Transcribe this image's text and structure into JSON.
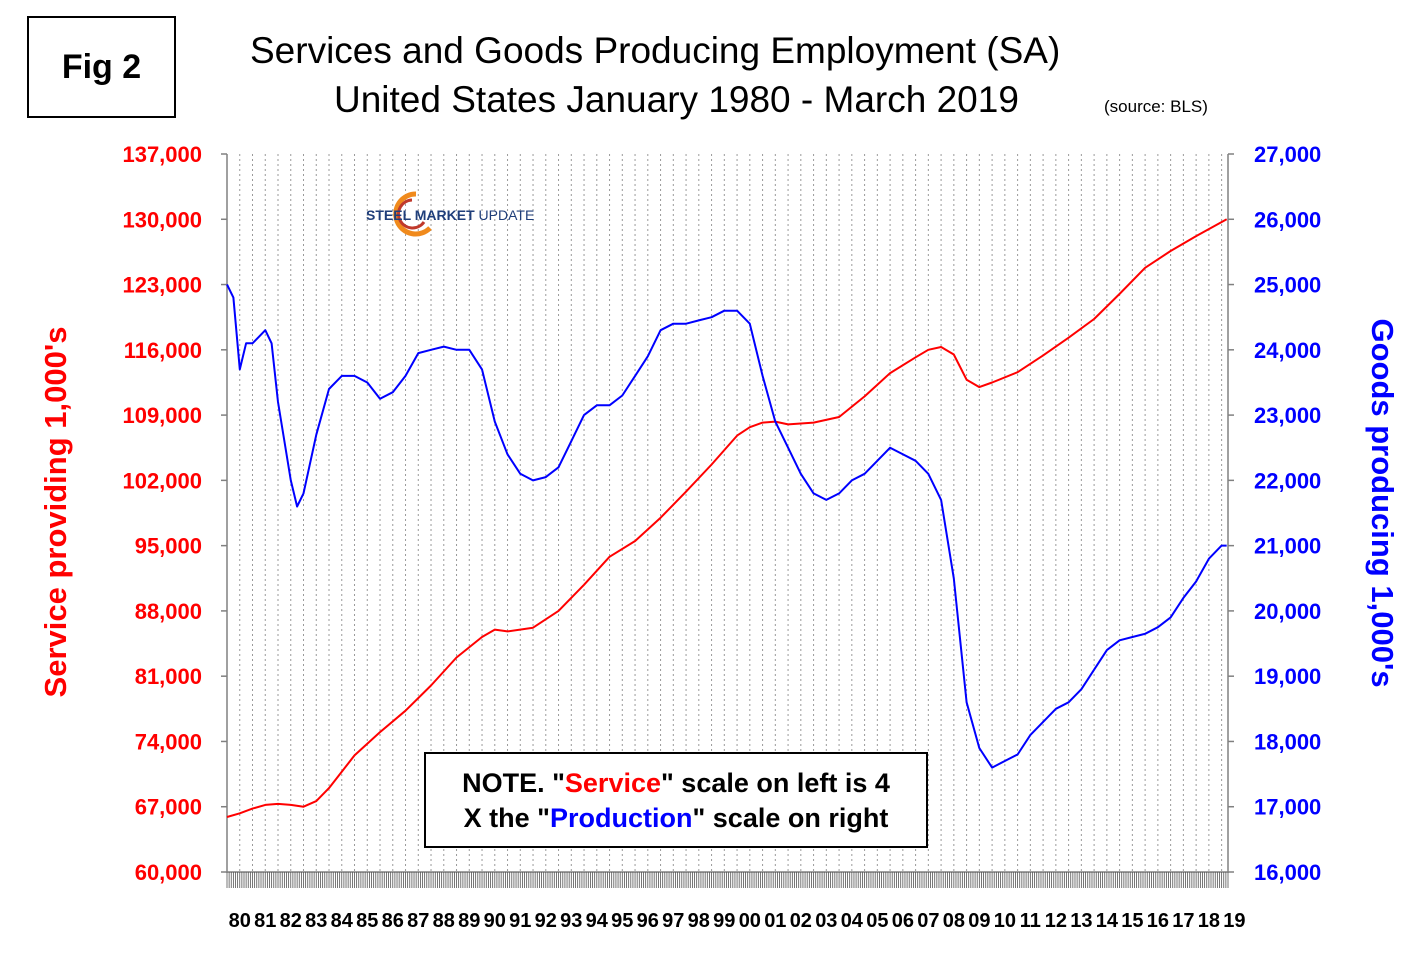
{
  "fig_label": "Fig 2",
  "title_line1": "Services and Goods Producing Employment (SA)",
  "title_line2": "United States January 1980 - March 2019",
  "source": "(source: BLS)",
  "logo": {
    "bold": "STEEL MARKET",
    "light": " UPDATE"
  },
  "note": {
    "p1": "NOTE. \"",
    "service": "Service",
    "p2": "\" scale on left  is 4",
    "p3": "X the \"",
    "production": "Production",
    "p4": "\" scale on right"
  },
  "colors": {
    "service": "#ff0000",
    "goods": "#0000ff"
  },
  "chart_data": {
    "type": "line",
    "title": "Services and Goods Producing Employment (SA) United States January 1980 - March 2019",
    "ylabel_left": "Service providing 1,000's",
    "ylabel_right": "Goods producing 1,000's",
    "ylim_left": [
      60000,
      137000
    ],
    "ylim_right": [
      16000,
      27000
    ],
    "yticks_left": [
      "60,000",
      "67,000",
      "74,000",
      "81,000",
      "88,000",
      "95,000",
      "102,000",
      "109,000",
      "116,000",
      "123,000",
      "130,000",
      "137,000"
    ],
    "yticks_right": [
      "16,000",
      "17,000",
      "18,000",
      "19,000",
      "20,000",
      "21,000",
      "22,000",
      "23,000",
      "24,000",
      "25,000",
      "26,000",
      "27,000"
    ],
    "x_labels": [
      "80",
      "81",
      "82",
      "83",
      "84",
      "85",
      "86",
      "87",
      "88",
      "89",
      "90",
      "91",
      "92",
      "93",
      "94",
      "95",
      "96",
      "97",
      "98",
      "99",
      "00",
      "01",
      "02",
      "03",
      "04",
      "05",
      "06",
      "07",
      "08",
      "09",
      "10",
      "11",
      "12",
      "13",
      "14",
      "15",
      "16",
      "17",
      "18",
      "19"
    ],
    "grid": "vertical dotted",
    "series": [
      {
        "name": "Service",
        "axis": "left",
        "color": "#ff0000",
        "x": [
          1980.0,
          1980.5,
          1981.0,
          1981.5,
          1982.0,
          1982.5,
          1983.0,
          1983.5,
          1984.0,
          1985.0,
          1986.0,
          1987.0,
          1988.0,
          1989.0,
          1990.0,
          1990.5,
          1991.0,
          1992.0,
          1993.0,
          1994.0,
          1995.0,
          1996.0,
          1997.0,
          1998.0,
          1999.0,
          2000.0,
          2000.5,
          2001.0,
          2001.5,
          2002.0,
          2003.0,
          2004.0,
          2005.0,
          2006.0,
          2007.0,
          2007.5,
          2008.0,
          2008.5,
          2009.0,
          2009.5,
          2010.0,
          2011.0,
          2012.0,
          2013.0,
          2014.0,
          2015.0,
          2016.0,
          2017.0,
          2018.0,
          2019.2
        ],
        "y": [
          65900,
          66300,
          66800,
          67200,
          67300,
          67200,
          67000,
          67600,
          69000,
          72500,
          75000,
          77300,
          80000,
          83000,
          85200,
          86000,
          85800,
          86200,
          88000,
          90800,
          93800,
          95500,
          98000,
          100800,
          103700,
          106800,
          107700,
          108200,
          108300,
          108000,
          108200,
          108800,
          111000,
          113500,
          115200,
          116000,
          116300,
          115500,
          112800,
          112000,
          112500,
          113600,
          115400,
          117300,
          119300,
          122000,
          124800,
          126600,
          128200,
          130000
        ]
      },
      {
        "name": "Production",
        "axis": "right",
        "color": "#0000ff",
        "x": [
          1980.0,
          1980.25,
          1980.5,
          1980.75,
          1981.0,
          1981.25,
          1981.5,
          1981.75,
          1982.0,
          1982.5,
          1982.75,
          1983.0,
          1983.5,
          1984.0,
          1984.5,
          1985.0,
          1985.5,
          1986.0,
          1986.5,
          1987.0,
          1987.5,
          1988.0,
          1988.5,
          1989.0,
          1989.5,
          1990.0,
          1990.5,
          1991.0,
          1991.5,
          1992.0,
          1992.5,
          1993.0,
          1993.5,
          1994.0,
          1994.5,
          1995.0,
          1995.5,
          1996.0,
          1996.5,
          1997.0,
          1997.5,
          1998.0,
          1998.5,
          1999.0,
          1999.5,
          2000.0,
          2000.5,
          2001.0,
          2001.5,
          2002.0,
          2002.5,
          2003.0,
          2003.5,
          2004.0,
          2004.5,
          2005.0,
          2005.5,
          2006.0,
          2006.5,
          2007.0,
          2007.5,
          2008.0,
          2008.5,
          2009.0,
          2009.5,
          2010.0,
          2010.5,
          2011.0,
          2011.5,
          2012.0,
          2012.5,
          2013.0,
          2013.5,
          2014.0,
          2014.5,
          2015.0,
          2015.5,
          2016.0,
          2016.5,
          2017.0,
          2017.5,
          2018.0,
          2018.5,
          2019.0,
          2019.2
        ],
        "y": [
          25000,
          24800,
          23700,
          24100,
          24100,
          24200,
          24300,
          24100,
          23200,
          22000,
          21600,
          21800,
          22700,
          23400,
          23600,
          23600,
          23500,
          23250,
          23350,
          23600,
          23950,
          24000,
          24050,
          24000,
          24000,
          23700,
          22900,
          22400,
          22100,
          22000,
          22050,
          22200,
          22600,
          23000,
          23150,
          23150,
          23300,
          23600,
          23900,
          24300,
          24400,
          24400,
          24450,
          24500,
          24600,
          24600,
          24400,
          23600,
          22900,
          22500,
          22100,
          21800,
          21700,
          21800,
          22000,
          22100,
          22300,
          22500,
          22400,
          22300,
          22100,
          21700,
          20500,
          18600,
          17900,
          17600,
          17700,
          17800,
          18100,
          18300,
          18500,
          18600,
          18800,
          19100,
          19400,
          19550,
          19600,
          19650,
          19750,
          19900,
          20200,
          20450,
          20800,
          21000,
          21000
        ]
      }
    ]
  }
}
